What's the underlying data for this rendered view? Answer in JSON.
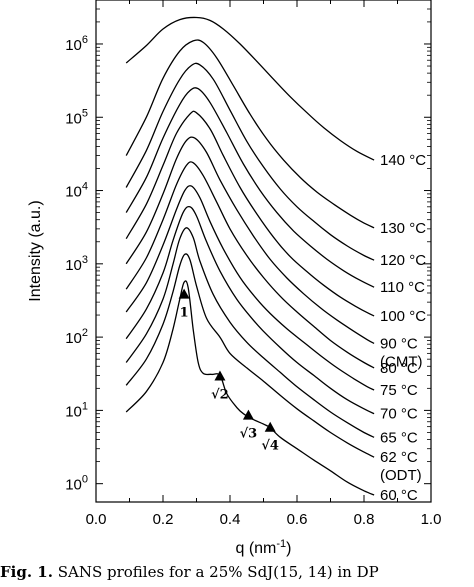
{
  "chart_data": {
    "type": "line",
    "xlabel": "q (nm",
    "xlabel_sup": "-1",
    "xlabel_close": ")",
    "ylabel": "Intensity (a.u.)",
    "xlim": [
      0.0,
      1.0
    ],
    "ylim_log10": [
      -0.25,
      6.6
    ],
    "yscale": "log",
    "x_ticks": [
      "0.0",
      "0.2",
      "0.4",
      "0.6",
      "0.8",
      "1.0"
    ],
    "y_ticks": [
      {
        "base": "10",
        "exp": "0",
        "value": 1
      },
      {
        "base": "10",
        "exp": "1",
        "value": 10
      },
      {
        "base": "10",
        "exp": "2",
        "value": 100
      },
      {
        "base": "10",
        "exp": "3",
        "value": 1000
      },
      {
        "base": "10",
        "exp": "4",
        "value": 10000
      },
      {
        "base": "10",
        "exp": "5",
        "value": 100000
      },
      {
        "base": "10",
        "exp": "6",
        "value": 1000000
      }
    ],
    "series": [
      {
        "name": "60 °C",
        "extra": "",
        "points": [
          [
            0.09,
            9.5
          ],
          [
            0.15,
            18
          ],
          [
            0.2,
            45
          ],
          [
            0.23,
            130
          ],
          [
            0.25,
            330
          ],
          [
            0.263,
            560
          ],
          [
            0.275,
            480
          ],
          [
            0.29,
            130
          ],
          [
            0.305,
            45
          ],
          [
            0.32,
            32
          ],
          [
            0.345,
            31
          ],
          [
            0.37,
            30
          ],
          [
            0.39,
            17
          ],
          [
            0.42,
            11
          ],
          [
            0.44,
            9
          ],
          [
            0.47,
            7.5
          ],
          [
            0.5,
            6.5
          ],
          [
            0.52,
            5.8
          ],
          [
            0.55,
            4.3
          ],
          [
            0.6,
            3.0
          ],
          [
            0.65,
            2.1
          ],
          [
            0.7,
            1.5
          ],
          [
            0.75,
            1.05
          ],
          [
            0.8,
            0.8
          ],
          [
            0.83,
            0.7
          ]
        ]
      },
      {
        "name": "62 °C",
        "extra": "(ODT)",
        "points": [
          [
            0.09,
            22
          ],
          [
            0.15,
            50
          ],
          [
            0.2,
            150
          ],
          [
            0.23,
            420
          ],
          [
            0.25,
            950
          ],
          [
            0.265,
            1350
          ],
          [
            0.28,
            1150
          ],
          [
            0.3,
            500
          ],
          [
            0.33,
            180
          ],
          [
            0.37,
            100
          ],
          [
            0.4,
            60
          ],
          [
            0.45,
            38
          ],
          [
            0.5,
            25
          ],
          [
            0.55,
            16
          ],
          [
            0.6,
            10.5
          ],
          [
            0.65,
            7.2
          ],
          [
            0.7,
            5
          ],
          [
            0.75,
            3.6
          ],
          [
            0.8,
            2.7
          ],
          [
            0.83,
            2.3
          ]
        ]
      },
      {
        "name": "65 °C",
        "extra": "",
        "points": [
          [
            0.09,
            45
          ],
          [
            0.15,
            110
          ],
          [
            0.2,
            330
          ],
          [
            0.23,
            1000
          ],
          [
            0.25,
            2200
          ],
          [
            0.27,
            3100
          ],
          [
            0.29,
            2300
          ],
          [
            0.31,
            1100
          ],
          [
            0.35,
            380
          ],
          [
            0.4,
            160
          ],
          [
            0.45,
            85
          ],
          [
            0.5,
            52
          ],
          [
            0.55,
            33
          ],
          [
            0.6,
            21
          ],
          [
            0.65,
            14
          ],
          [
            0.7,
            9.5
          ],
          [
            0.75,
            6.8
          ],
          [
            0.8,
            5
          ],
          [
            0.83,
            4.3
          ]
        ]
      },
      {
        "name": "70 °C",
        "extra": "",
        "points": [
          [
            0.09,
            95
          ],
          [
            0.15,
            240
          ],
          [
            0.2,
            750
          ],
          [
            0.23,
            2100
          ],
          [
            0.26,
            5000
          ],
          [
            0.28,
            6000
          ],
          [
            0.3,
            4500
          ],
          [
            0.33,
            2000
          ],
          [
            0.37,
            800
          ],
          [
            0.42,
            330
          ],
          [
            0.47,
            170
          ],
          [
            0.5,
            120
          ],
          [
            0.55,
            72
          ],
          [
            0.6,
            45
          ],
          [
            0.65,
            30
          ],
          [
            0.7,
            20
          ],
          [
            0.75,
            14
          ],
          [
            0.8,
            10.5
          ],
          [
            0.83,
            9
          ]
        ]
      },
      {
        "name": "75 °C",
        "extra": "",
        "points": [
          [
            0.09,
            220
          ],
          [
            0.15,
            550
          ],
          [
            0.2,
            1800
          ],
          [
            0.24,
            5500
          ],
          [
            0.265,
            10000
          ],
          [
            0.285,
            11500
          ],
          [
            0.31,
            8000
          ],
          [
            0.34,
            3800
          ],
          [
            0.38,
            1600
          ],
          [
            0.43,
            650
          ],
          [
            0.48,
            330
          ],
          [
            0.52,
            210
          ],
          [
            0.57,
            130
          ],
          [
            0.62,
            85
          ],
          [
            0.67,
            56
          ],
          [
            0.72,
            38
          ],
          [
            0.77,
            27
          ],
          [
            0.81,
            21
          ],
          [
            0.83,
            19
          ]
        ]
      },
      {
        "name": "80 °C",
        "extra": "",
        "points": [
          [
            0.09,
            450
          ],
          [
            0.15,
            1200
          ],
          [
            0.2,
            4000
          ],
          [
            0.24,
            12000
          ],
          [
            0.27,
            22000
          ],
          [
            0.29,
            24000
          ],
          [
            0.32,
            16000
          ],
          [
            0.36,
            7000
          ],
          [
            0.4,
            3000
          ],
          [
            0.45,
            1300
          ],
          [
            0.5,
            650
          ],
          [
            0.55,
            360
          ],
          [
            0.6,
            220
          ],
          [
            0.65,
            140
          ],
          [
            0.7,
            90
          ],
          [
            0.75,
            62
          ],
          [
            0.8,
            45
          ],
          [
            0.83,
            38
          ]
        ]
      },
      {
        "name": "90 °C",
        "extra": "(CMT)",
        "points": [
          [
            0.09,
            1000
          ],
          [
            0.15,
            2700
          ],
          [
            0.2,
            9000
          ],
          [
            0.24,
            27000
          ],
          [
            0.27,
            48000
          ],
          [
            0.295,
            52000
          ],
          [
            0.33,
            33000
          ],
          [
            0.37,
            14000
          ],
          [
            0.42,
            5500
          ],
          [
            0.47,
            2400
          ],
          [
            0.52,
            1150
          ],
          [
            0.57,
            640
          ],
          [
            0.62,
            390
          ],
          [
            0.67,
            250
          ],
          [
            0.72,
            170
          ],
          [
            0.77,
            120
          ],
          [
            0.81,
            92
          ],
          [
            0.83,
            82
          ]
        ]
      },
      {
        "name": "100 °C",
        "extra": "",
        "points": [
          [
            0.09,
            2200
          ],
          [
            0.15,
            6500
          ],
          [
            0.2,
            22000
          ],
          [
            0.24,
            60000
          ],
          [
            0.28,
            110000
          ],
          [
            0.3,
            115000
          ],
          [
            0.34,
            70000
          ],
          [
            0.38,
            30000
          ],
          [
            0.43,
            11000
          ],
          [
            0.48,
            4800
          ],
          [
            0.53,
            2300
          ],
          [
            0.58,
            1250
          ],
          [
            0.63,
            780
          ],
          [
            0.68,
            510
          ],
          [
            0.73,
            350
          ],
          [
            0.78,
            255
          ],
          [
            0.81,
            215
          ],
          [
            0.83,
            195
          ]
        ]
      },
      {
        "name": "110 °C",
        "extra": "",
        "points": [
          [
            0.09,
            5000
          ],
          [
            0.15,
            15000
          ],
          [
            0.2,
            52000
          ],
          [
            0.25,
            150000
          ],
          [
            0.28,
            230000
          ],
          [
            0.305,
            245000
          ],
          [
            0.34,
            160000
          ],
          [
            0.39,
            62000
          ],
          [
            0.44,
            23000
          ],
          [
            0.49,
            10000
          ],
          [
            0.54,
            5000
          ],
          [
            0.59,
            2800
          ],
          [
            0.64,
            1750
          ],
          [
            0.69,
            1150
          ],
          [
            0.74,
            800
          ],
          [
            0.79,
            590
          ],
          [
            0.83,
            480
          ]
        ]
      },
      {
        "name": "120 °C",
        "extra": "",
        "points": [
          [
            0.09,
            11000
          ],
          [
            0.15,
            35000
          ],
          [
            0.2,
            120000
          ],
          [
            0.25,
            330000
          ],
          [
            0.285,
            510000
          ],
          [
            0.31,
            520000
          ],
          [
            0.35,
            330000
          ],
          [
            0.4,
            125000
          ],
          [
            0.45,
            47000
          ],
          [
            0.5,
            21000
          ],
          [
            0.55,
            10500
          ],
          [
            0.6,
            6000
          ],
          [
            0.65,
            3800
          ],
          [
            0.7,
            2500
          ],
          [
            0.75,
            1750
          ],
          [
            0.8,
            1300
          ],
          [
            0.83,
            1120
          ]
        ]
      },
      {
        "name": "130 °C",
        "extra": "",
        "points": [
          [
            0.09,
            30000
          ],
          [
            0.15,
            100000
          ],
          [
            0.2,
            340000
          ],
          [
            0.25,
            800000
          ],
          [
            0.29,
            1100000
          ],
          [
            0.32,
            1050000
          ],
          [
            0.36,
            650000
          ],
          [
            0.41,
            270000
          ],
          [
            0.46,
            110000
          ],
          [
            0.51,
            50000
          ],
          [
            0.56,
            26000
          ],
          [
            0.61,
            15000
          ],
          [
            0.66,
            9500
          ],
          [
            0.71,
            6500
          ],
          [
            0.76,
            4600
          ],
          [
            0.8,
            3600
          ],
          [
            0.83,
            3100
          ]
        ]
      },
      {
        "name": "140 °C",
        "extra": "",
        "points": [
          [
            0.09,
            550000
          ],
          [
            0.15,
            950000
          ],
          [
            0.2,
            1600000
          ],
          [
            0.25,
            2150000
          ],
          [
            0.3,
            2300000
          ],
          [
            0.34,
            2100000
          ],
          [
            0.38,
            1600000
          ],
          [
            0.43,
            1000000
          ],
          [
            0.48,
            580000
          ],
          [
            0.53,
            330000
          ],
          [
            0.58,
            190000
          ],
          [
            0.63,
            115000
          ],
          [
            0.68,
            72000
          ],
          [
            0.73,
            48000
          ],
          [
            0.78,
            34000
          ],
          [
            0.83,
            26000
          ]
        ]
      }
    ],
    "peak_markers": [
      {
        "q": 0.263,
        "intensity": 380,
        "label": "1"
      },
      {
        "q": 0.37,
        "intensity": 29,
        "label": "√2"
      },
      {
        "q": 0.455,
        "intensity": 8.5,
        "label": "√3"
      },
      {
        "q": 0.52,
        "intensity": 5.8,
        "label": "√4"
      }
    ]
  },
  "caption": {
    "prefix": "Fig. 1.",
    "text": " SANS profiles for a 25% SdJ(15, 14) in DP"
  }
}
